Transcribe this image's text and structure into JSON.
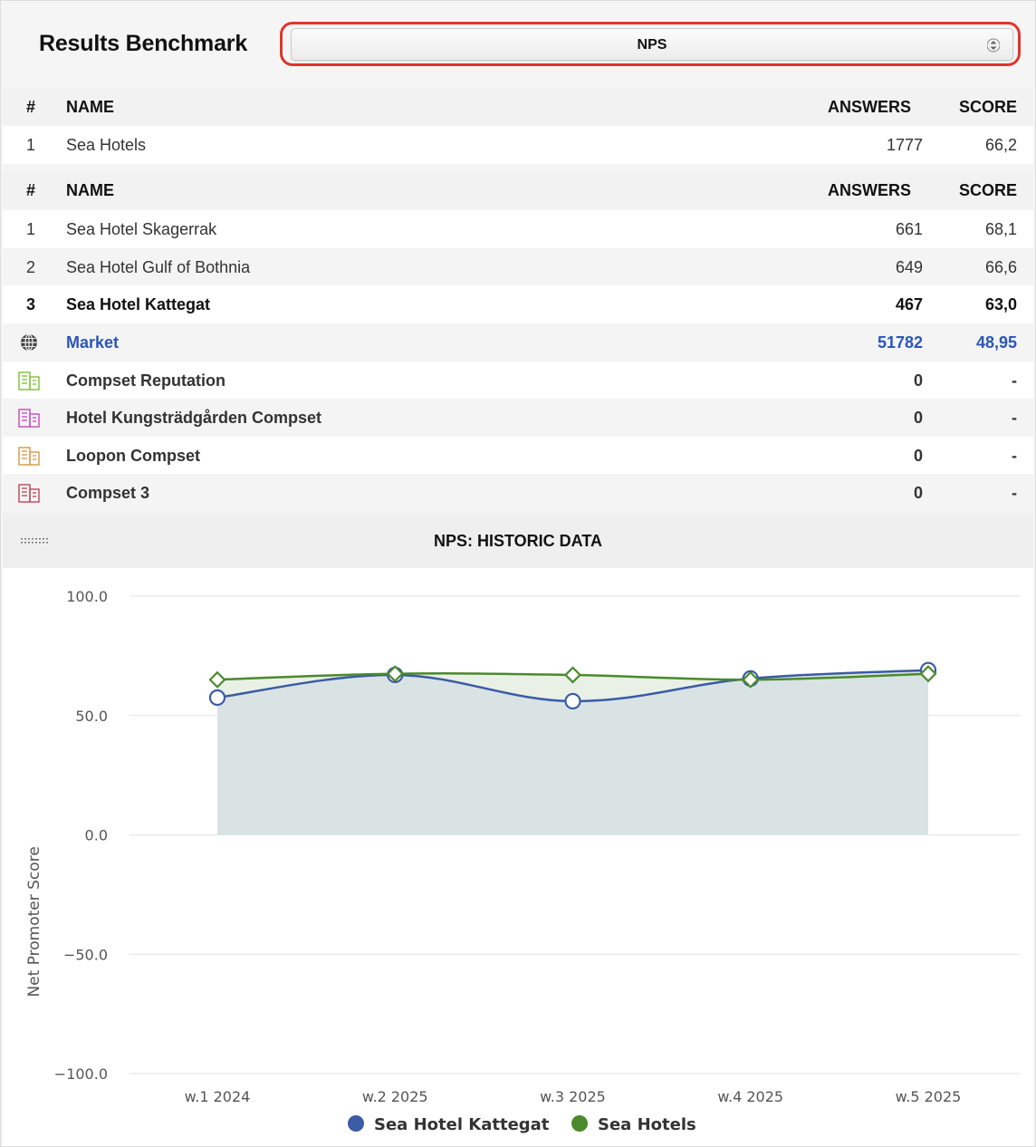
{
  "header": {
    "title": "Results Benchmark",
    "metric_select": {
      "value": "NPS"
    }
  },
  "table_headers": {
    "num": "#",
    "name": "NAME",
    "answers": "ANSWERS",
    "score": "SCORE"
  },
  "group_total": [
    {
      "num": "1",
      "name": "Sea Hotels",
      "answers": "1777",
      "score": "66,2"
    }
  ],
  "hotels": [
    {
      "num": "1",
      "name": "Sea Hotel Skagerrak",
      "answers": "661",
      "score": "68,1"
    },
    {
      "num": "2",
      "name": "Sea Hotel Gulf of Bothnia",
      "answers": "649",
      "score": "66,6"
    },
    {
      "num": "3",
      "name": "Sea Hotel Kattegat",
      "answers": "467",
      "score": "63,0"
    }
  ],
  "market": {
    "name": "Market",
    "answers": "51782",
    "score": "48,95",
    "icon": "globe-icon"
  },
  "compsets": [
    {
      "name": "Compset Reputation",
      "answers": "0",
      "score": "-",
      "icon": "building-icon",
      "color": "#8cc84b"
    },
    {
      "name": "Hotel Kungsträdgården Compset",
      "answers": "0",
      "score": "-",
      "icon": "building-icon",
      "color": "#c55fc5"
    },
    {
      "name": "Loopon Compset",
      "answers": "0",
      "score": "-",
      "icon": "building-icon",
      "color": "#dca35a"
    },
    {
      "name": "Compset 3",
      "answers": "0",
      "score": "-",
      "icon": "building-icon",
      "color": "#c45a6a"
    }
  ],
  "chart_header": {
    "title": "NPS: HISTORIC DATA"
  },
  "chart_data": {
    "type": "line",
    "title": "NPS: HISTORIC DATA",
    "xlabel": "",
    "ylabel": "Net Promoter Score",
    "ylim": [
      -100,
      100
    ],
    "yticks": [
      "100.0",
      "50.0",
      "0.0",
      "−50.0",
      "−100.0"
    ],
    "ytick_values": [
      100,
      50,
      0,
      -50,
      -100
    ],
    "categories": [
      "w.1 2024",
      "w.2 2025",
      "w.3 2025",
      "w.4 2025",
      "w.5 2025"
    ],
    "series": [
      {
        "name": "Sea Hotel Kattegat",
        "values": [
          57.5,
          67,
          56,
          65.5,
          69
        ],
        "color": "#3b5ba5",
        "marker": "circle"
      },
      {
        "name": "Sea Hotels",
        "values": [
          65,
          67.5,
          67,
          65,
          67.5
        ],
        "color": "#4a8a2c",
        "marker": "diamond"
      }
    ],
    "legend": "bottom-center",
    "grid": true
  }
}
